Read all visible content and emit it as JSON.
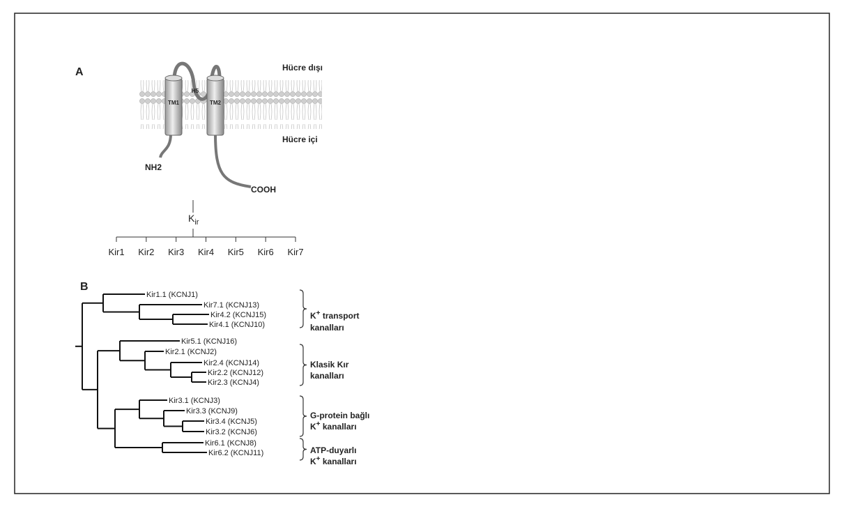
{
  "panel_a": {
    "label": "A",
    "extracellular": "Hücre dışı",
    "intracellular": "Hücre içi",
    "tm1": "TM1",
    "pore": "H5",
    "tm2": "TM2",
    "n_terminus": "NH2",
    "c_terminus": "COOH",
    "family": {
      "root": {
        "main": "K",
        "sub": "ir"
      },
      "children": [
        "Kir1",
        "Kir2",
        "Kir3",
        "Kir4",
        "Kir5",
        "Kir6",
        "Kir7"
      ]
    }
  },
  "panel_b": {
    "label": "B",
    "leaves": [
      "Kir1.1 (KCNJ1)",
      "Kir7.1 (KCNJ13)",
      "Kir4.2 (KCNJ15)",
      "Kir4.1 (KCNJ10)",
      "Kir5.1 (KCNJ16)",
      "Kir2.1 (KCNJ2)",
      "Kir2.4 (KCNJ14)",
      "Kir2.2 (KCNJ12)",
      "Kir2.3 (KCNJ4)",
      "Kir3.1 (KCNJ3)",
      "Kir3.3 (KCNJ9)",
      "Kir3.4 (KCNJ5)",
      "Kir3.2 (KCNJ6)",
      "Kir6.1 (KCNJ8)",
      "Kir6.2 (KCNJ11)"
    ],
    "groups": [
      {
        "lines": [
          {
            "text": "K",
            "sup": "+",
            "tail": " transport"
          },
          {
            "text": "kanalları"
          }
        ]
      },
      {
        "lines": [
          {
            "text": "Klasik Kır"
          },
          {
            "text": "kanalları"
          }
        ]
      },
      {
        "lines": [
          {
            "text": "G-protein bağlı"
          },
          {
            "text": "K",
            "sup": "+",
            "tail": " kanalları"
          }
        ]
      },
      {
        "lines": [
          {
            "text": "ATP-duyarlı"
          },
          {
            "text": "K",
            "sup": "+",
            "tail": " kanalları"
          }
        ]
      }
    ]
  }
}
